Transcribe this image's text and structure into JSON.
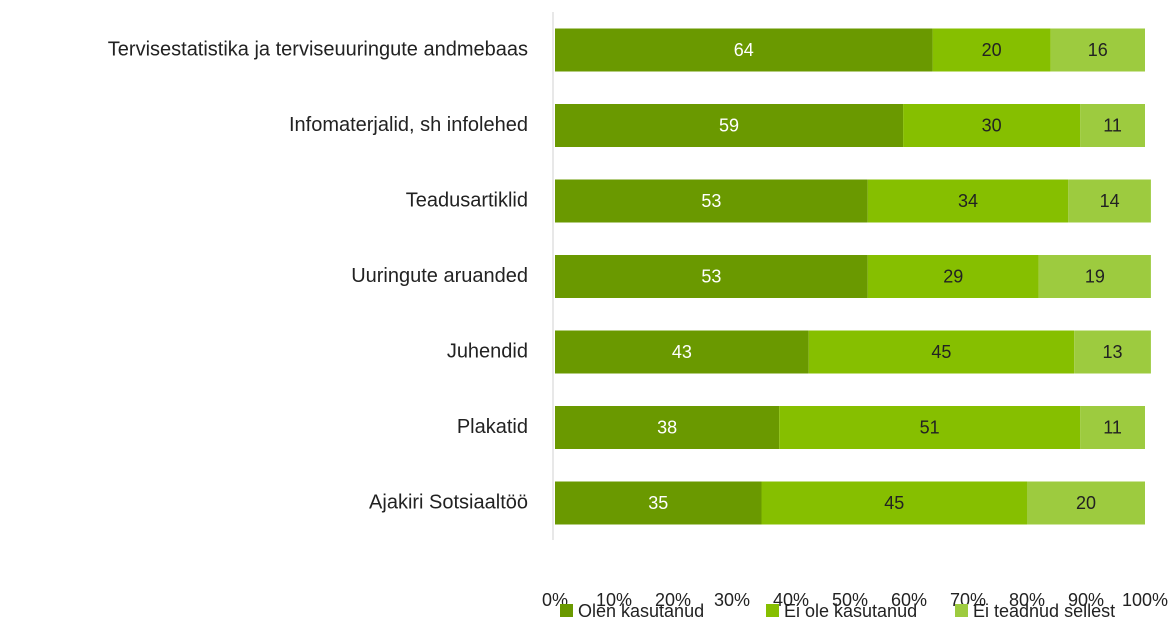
{
  "chart_data": {
    "type": "stacked_bar_horizontal",
    "categories": [
      "Tervisestatistika ja terviseuuringute andmebaas",
      "Infomaterjalid, sh infolehed",
      "Teadusartiklid",
      "Uuringute aruanded",
      "Juhendid",
      "Plakatid",
      "Ajakiri Sotsiaaltöö"
    ],
    "series": [
      {
        "name": "Olen kasutanud",
        "color": "#6a9900",
        "label_color": "#ffffff",
        "values": [
          64,
          59,
          53,
          53,
          43,
          38,
          35
        ]
      },
      {
        "name": "Ei ole kasutanud",
        "color": "#86bf00",
        "label_color": "#222222",
        "values": [
          20,
          30,
          34,
          29,
          45,
          51,
          45
        ]
      },
      {
        "name": "Ei teadnud sellest",
        "color": "#9dcb3f",
        "label_color": "#222222",
        "values": [
          16,
          11,
          14,
          19,
          13,
          11,
          20
        ]
      }
    ],
    "xlim": [
      0,
      100
    ],
    "xticks": [
      {
        "value": 0,
        "label": "0%"
      },
      {
        "value": 10,
        "label": "10%"
      },
      {
        "value": 20,
        "label": "20%"
      },
      {
        "value": 30,
        "label": "30%"
      },
      {
        "value": 40,
        "label": "40%"
      },
      {
        "value": 50,
        "label": "50%"
      },
      {
        "value": 60,
        "label": "60%"
      },
      {
        "value": 70,
        "label": "70%"
      },
      {
        "value": 80,
        "label": "80%"
      },
      {
        "value": 90,
        "label": "90%"
      },
      {
        "value": 100,
        "label": "100%"
      }
    ],
    "legend": "bottom"
  }
}
